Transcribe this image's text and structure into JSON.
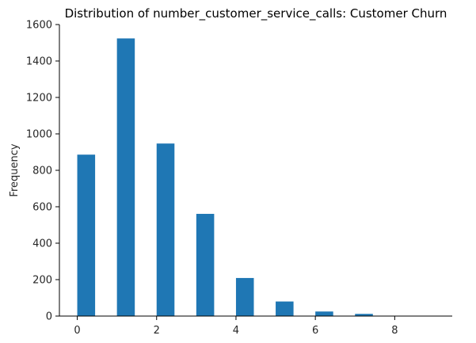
{
  "chart_data": {
    "type": "bar",
    "title": "Distribution of number_customer_service_calls: Customer Churn",
    "xlabel": "",
    "ylabel": "Frequency",
    "bar_color": "#1f77b4",
    "x": [
      0,
      1,
      2,
      3,
      4,
      5,
      6,
      7,
      8,
      9
    ],
    "values": [
      886,
      1524,
      947,
      561,
      209,
      80,
      25,
      12,
      2,
      1
    ],
    "xlim": [
      -0.45,
      9.45
    ],
    "ylim": [
      0,
      1600
    ],
    "xticks": [
      0,
      2,
      4,
      6,
      8
    ],
    "yticks": [
      0,
      200,
      400,
      600,
      800,
      1000,
      1200,
      1400,
      1600
    ],
    "grid": false,
    "spines": [
      "left",
      "bottom"
    ]
  }
}
